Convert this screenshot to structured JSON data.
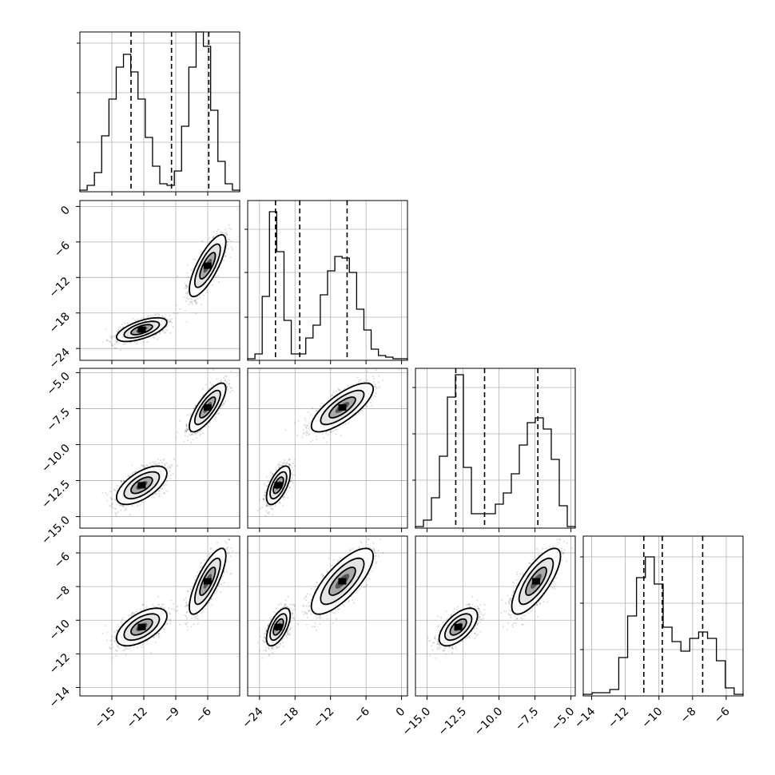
{
  "chart_data": {
    "type": "corner",
    "grid": true,
    "params": [
      {
        "range": [
          -18,
          -3
        ],
        "ticks": [
          -15,
          -12,
          -9,
          -6
        ],
        "tick_labels": [
          "−15",
          "−12",
          "−9",
          "−6"
        ],
        "quantiles": [
          -13.2,
          -9.4,
          -5.9
        ]
      },
      {
        "range": [
          -26,
          1
        ],
        "ticks": [
          -24,
          -18,
          -12,
          -6,
          0
        ],
        "tick_labels": [
          "−24",
          "−18",
          "−12",
          "−6",
          "0"
        ],
        "quantiles": [
          -21.3,
          -17.2,
          -9.2
        ]
      },
      {
        "range": [
          -15.8,
          -4.7
        ],
        "ticks": [
          -15.0,
          -12.5,
          -10.0,
          -7.5,
          -5.0
        ],
        "tick_labels": [
          "−15.0",
          "−12.5",
          "−10.0",
          "−7.5",
          "−5.0"
        ],
        "quantiles": [
          -13.0,
          -11.0,
          -7.3
        ]
      },
      {
        "range": [
          -14.5,
          -5.0
        ],
        "ticks": [
          -14,
          -12,
          -10,
          -8,
          -6
        ],
        "tick_labels": [
          "−14",
          "−12",
          "−10",
          "−8",
          "−6"
        ],
        "quantiles": [
          -10.9,
          -9.8,
          -7.4
        ]
      }
    ],
    "histograms": [
      {
        "counts": [
          0.01,
          0.04,
          0.12,
          0.35,
          0.58,
          0.78,
          0.86,
          0.75,
          0.58,
          0.34,
          0.16,
          0.05,
          0.04,
          0.13,
          0.41,
          0.78,
          1.0,
          0.91,
          0.51,
          0.19,
          0.05,
          0.01
        ],
        "ytick_fracs": [
          0.31,
          0.62,
          0.93
        ]
      },
      {
        "counts": [
          0.01,
          0.04,
          0.4,
          0.93,
          0.68,
          0.25,
          0.04,
          0.04,
          0.14,
          0.22,
          0.41,
          0.56,
          0.65,
          0.64,
          0.55,
          0.32,
          0.19,
          0.07,
          0.03,
          0.02,
          0.01,
          0.01
        ],
        "ytick_fracs": [
          0.27,
          0.55,
          0.82
        ]
      },
      {
        "counts": [
          0.01,
          0.05,
          0.19,
          0.45,
          0.82,
          0.96,
          0.38,
          0.09,
          0.09,
          0.09,
          0.15,
          0.22,
          0.34,
          0.52,
          0.66,
          0.69,
          0.62,
          0.43,
          0.14,
          0.01
        ],
        "ytick_fracs": [
          0.3,
          0.59,
          0.88
        ]
      },
      {
        "counts": [
          0.01,
          0.02,
          0.02,
          0.04,
          0.24,
          0.5,
          0.74,
          0.87,
          0.7,
          0.43,
          0.34,
          0.28,
          0.36,
          0.4,
          0.36,
          0.22,
          0.05,
          0.01
        ],
        "ytick_fracs": [
          0.29,
          0.58,
          0.87
        ]
      }
    ],
    "cluster_means": [
      [
        -12.2,
        -20.8,
        -12.8,
        -10.4
      ],
      [
        -6.0,
        -10.0,
        -7.4,
        -7.7
      ]
    ],
    "cluster_std": [
      [
        1.2,
        1.0,
        0.65,
        0.55
      ],
      [
        0.85,
        2.6,
        0.85,
        1.0
      ]
    ]
  }
}
